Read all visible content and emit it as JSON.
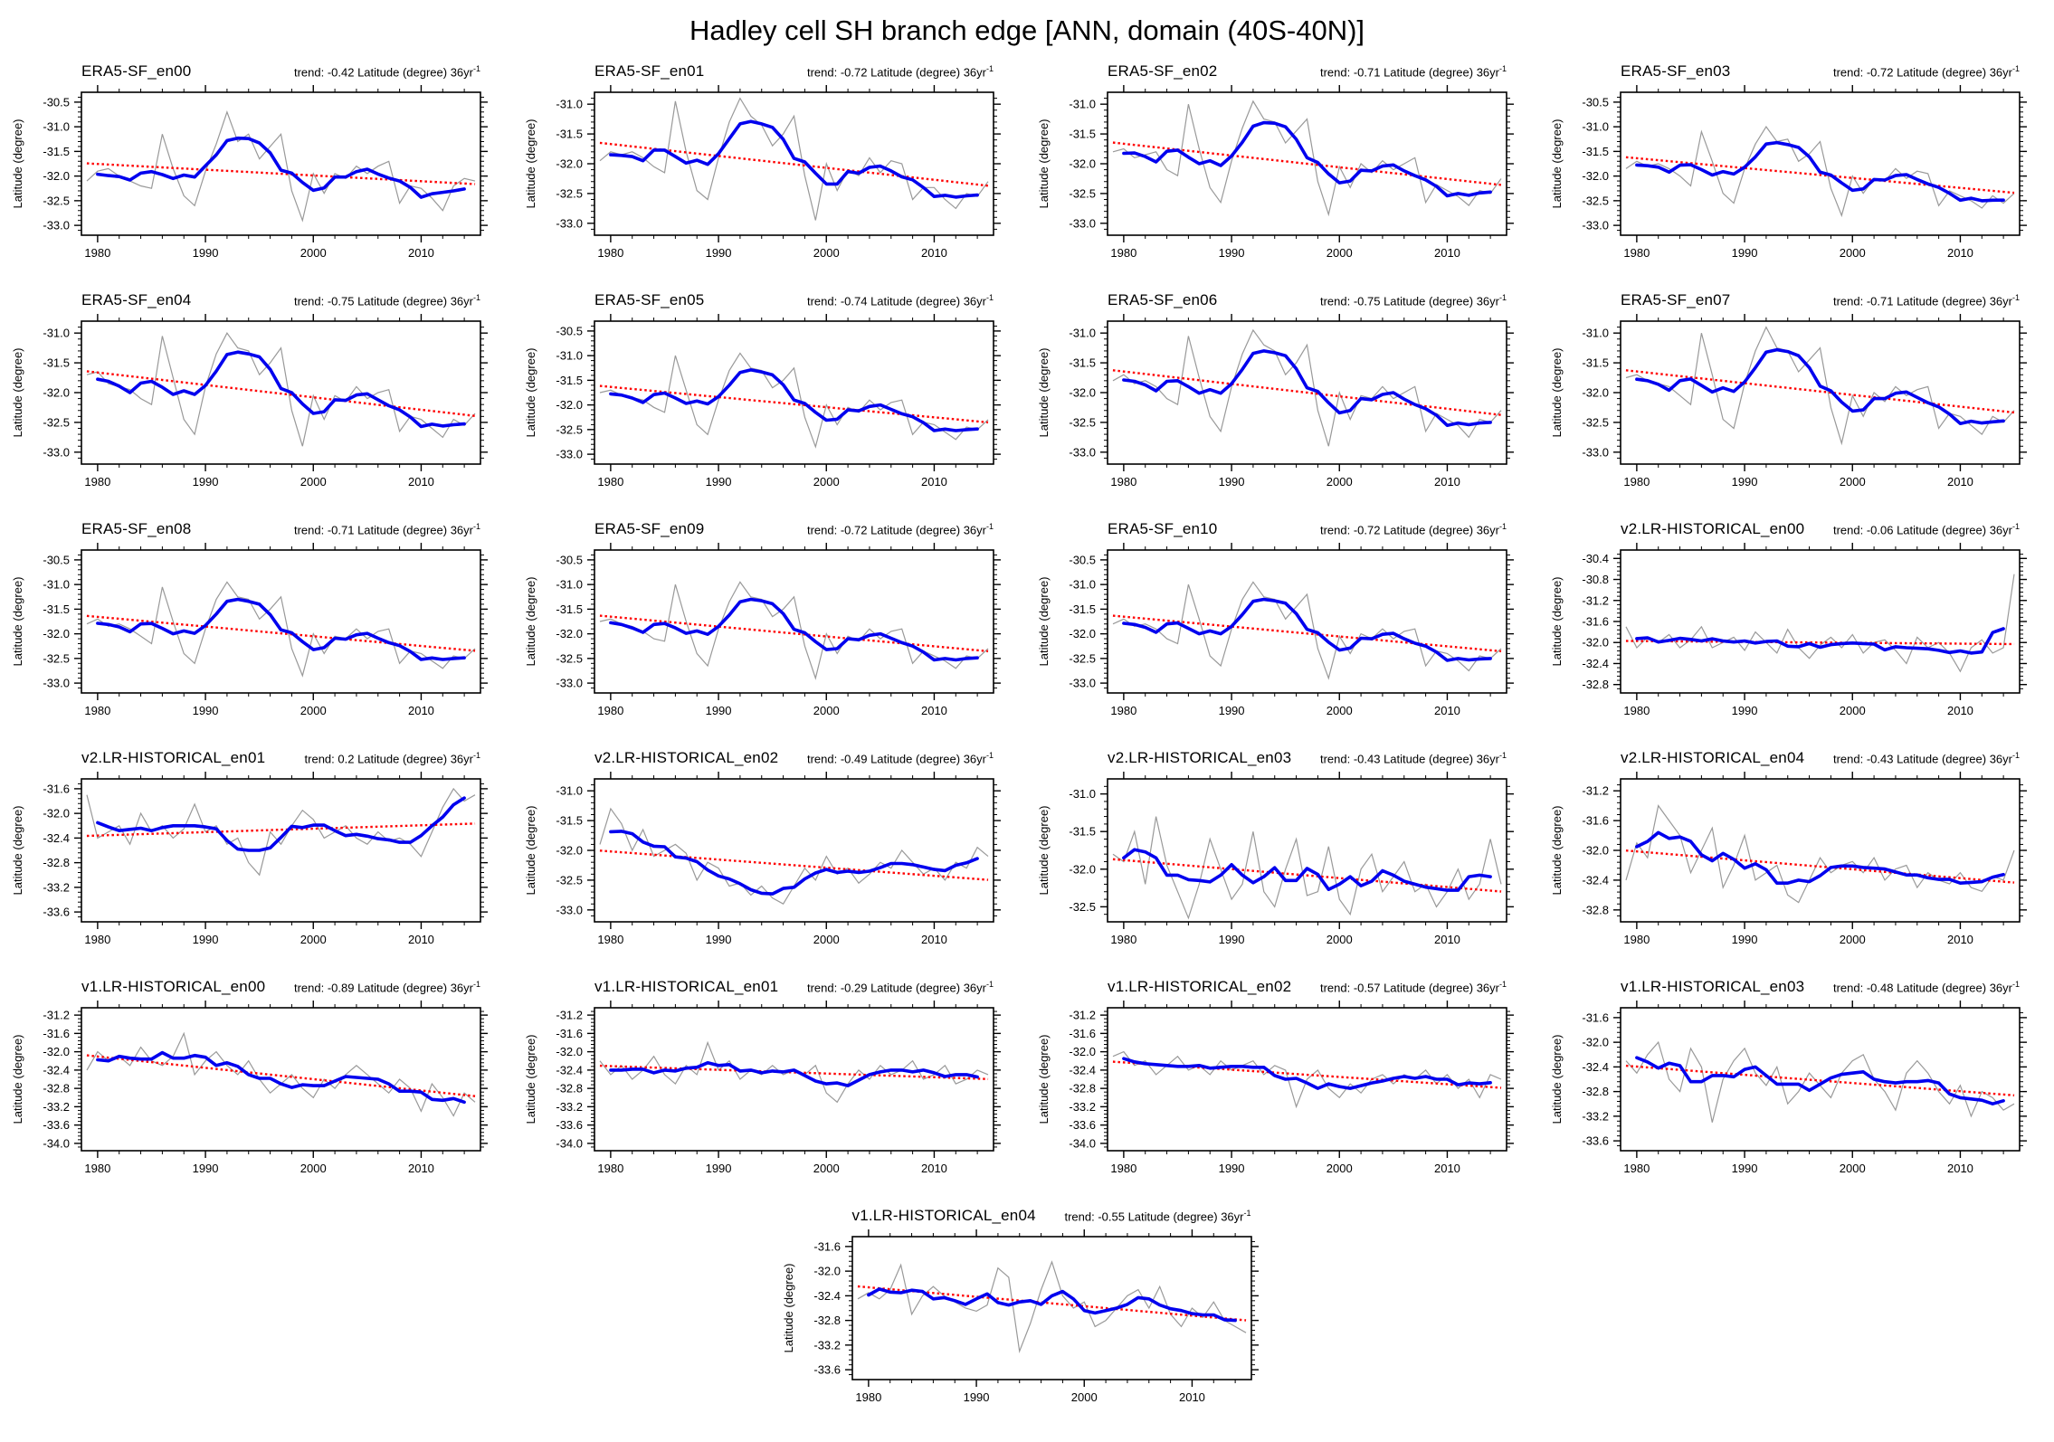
{
  "page_title": "Hadley cell SH branch edge [ANN, domain (40S-40N)]",
  "labels": {
    "ylabel": "Latitude (degree)",
    "trend_prefix": "trend: ",
    "trend_suffix": " Latitude (degree) 36yr",
    "trend_sup": "-1"
  },
  "colors": {
    "annual": "#999999",
    "smoothed": "#0000ee",
    "trend": "#ff0000",
    "frame": "#000000"
  },
  "axes": {
    "x_start": 1979,
    "x_end": 2015,
    "xlim": [
      1978.5,
      2015.5
    ],
    "xticks": [
      1980,
      1990,
      2000,
      2010
    ],
    "x_minor_step": 2
  },
  "chart_data": [
    {
      "type": "line",
      "title": "ERA5-SF_en00",
      "trend": "-0.42",
      "ystep": 0.5,
      "ylim": [
        -30.3,
        -33.2
      ],
      "yticks": [
        -30.5,
        -31.0,
        -31.5,
        -32.0,
        -32.5,
        -33.0
      ],
      "values": [
        -32.1,
        -31.9,
        -31.85,
        -32.0,
        -32.1,
        -32.2,
        -32.25,
        -31.15,
        -31.85,
        -32.4,
        -32.6,
        -31.9,
        -31.35,
        -30.7,
        -31.3,
        -31.15,
        -31.65,
        -31.4,
        -31.15,
        -32.3,
        -32.9,
        -31.95,
        -32.35,
        -31.95,
        -32.05,
        -31.8,
        -31.95,
        -31.8,
        -31.7,
        -32.55,
        -32.2,
        -32.25,
        -32.45,
        -32.7,
        -32.2,
        -32.05,
        -32.1
      ]
    },
    {
      "type": "line",
      "title": "ERA5-SF_en01",
      "trend": "-0.72",
      "ystep": 0.5,
      "ylim": [
        -30.8,
        -33.2
      ],
      "yticks": [
        -31.0,
        -31.5,
        -32.0,
        -32.5,
        -33.0
      ],
      "values": [
        -31.95,
        -31.8,
        -31.85,
        -31.8,
        -31.9,
        -32.05,
        -32.15,
        -30.95,
        -31.8,
        -32.45,
        -32.6,
        -31.9,
        -31.3,
        -30.9,
        -31.2,
        -31.35,
        -31.7,
        -31.5,
        -31.2,
        -32.2,
        -32.95,
        -32.0,
        -32.45,
        -32.1,
        -32.2,
        -31.9,
        -32.15,
        -31.95,
        -32.0,
        -32.6,
        -32.4,
        -32.4,
        -32.6,
        -32.75,
        -32.5,
        -32.55,
        -32.3
      ]
    },
    {
      "type": "line",
      "title": "ERA5-SF_en02",
      "trend": "-0.71",
      "ystep": 0.5,
      "ylim": [
        -30.8,
        -33.2
      ],
      "yticks": [
        -31.0,
        -31.5,
        -32.0,
        -32.5,
        -33.0
      ],
      "values": [
        -31.8,
        -31.75,
        -31.9,
        -31.85,
        -31.8,
        -32.1,
        -32.2,
        -31.0,
        -31.75,
        -32.4,
        -32.65,
        -31.95,
        -31.4,
        -30.95,
        -31.25,
        -31.3,
        -31.65,
        -31.45,
        -31.25,
        -32.3,
        -32.85,
        -32.05,
        -32.4,
        -32.0,
        -32.15,
        -31.95,
        -32.1,
        -32.0,
        -31.9,
        -32.65,
        -32.35,
        -32.45,
        -32.55,
        -32.7,
        -32.45,
        -32.5,
        -32.25
      ]
    },
    {
      "type": "line",
      "title": "ERA5-SF_en03",
      "trend": "-0.72",
      "ystep": 0.5,
      "ylim": [
        -30.3,
        -33.2
      ],
      "yticks": [
        -30.5,
        -31.0,
        -31.5,
        -32.0,
        -32.5,
        -33.0
      ],
      "values": [
        -31.85,
        -31.7,
        -31.8,
        -31.75,
        -31.85,
        -32.0,
        -32.2,
        -31.1,
        -31.7,
        -32.35,
        -32.55,
        -31.85,
        -31.35,
        -31.0,
        -31.3,
        -31.25,
        -31.7,
        -31.55,
        -31.3,
        -32.25,
        -32.8,
        -32.0,
        -32.35,
        -32.05,
        -32.1,
        -31.85,
        -32.05,
        -31.9,
        -31.95,
        -32.6,
        -32.3,
        -32.4,
        -32.5,
        -32.65,
        -32.4,
        -32.55,
        -32.35
      ]
    },
    {
      "type": "line",
      "title": "ERA5-SF_en04",
      "trend": "-0.75",
      "ystep": 0.5,
      "ylim": [
        -30.8,
        -33.2
      ],
      "yticks": [
        -31.0,
        -31.5,
        -32.0,
        -32.5,
        -33.0
      ],
      "values": [
        -31.7,
        -31.65,
        -31.85,
        -31.9,
        -31.95,
        -32.1,
        -32.2,
        -31.05,
        -31.75,
        -32.45,
        -32.7,
        -31.9,
        -31.35,
        -31.0,
        -31.25,
        -31.3,
        -31.7,
        -31.5,
        -31.25,
        -32.3,
        -32.9,
        -32.05,
        -32.45,
        -32.05,
        -32.15,
        -31.9,
        -32.1,
        -32.0,
        -31.95,
        -32.65,
        -32.4,
        -32.45,
        -32.6,
        -32.75,
        -32.45,
        -32.55,
        -32.35
      ]
    },
    {
      "type": "line",
      "title": "ERA5-SF_en05",
      "trend": "-0.74",
      "ystep": 0.5,
      "ylim": [
        -30.3,
        -33.2
      ],
      "yticks": [
        -30.5,
        -31.0,
        -31.5,
        -32.0,
        -32.5,
        -33.0
      ],
      "values": [
        -31.75,
        -31.7,
        -31.8,
        -31.85,
        -31.9,
        -32.05,
        -32.15,
        -31.0,
        -31.7,
        -32.4,
        -32.6,
        -31.9,
        -31.3,
        -30.95,
        -31.25,
        -31.3,
        -31.65,
        -31.5,
        -31.25,
        -32.25,
        -32.85,
        -32.0,
        -32.4,
        -32.05,
        -32.15,
        -31.9,
        -32.1,
        -31.95,
        -31.9,
        -32.6,
        -32.35,
        -32.4,
        -32.55,
        -32.7,
        -32.45,
        -32.5,
        -32.3
      ]
    },
    {
      "type": "line",
      "title": "ERA5-SF_en06",
      "trend": "-0.75",
      "ystep": 0.5,
      "ylim": [
        -30.8,
        -33.2
      ],
      "yticks": [
        -31.0,
        -31.5,
        -32.0,
        -32.5,
        -33.0
      ],
      "values": [
        -31.8,
        -31.7,
        -31.85,
        -31.8,
        -31.9,
        -32.1,
        -32.2,
        -31.05,
        -31.75,
        -32.4,
        -32.65,
        -31.9,
        -31.35,
        -30.95,
        -31.2,
        -31.3,
        -31.7,
        -31.5,
        -31.2,
        -32.3,
        -32.9,
        -32.0,
        -32.45,
        -32.05,
        -32.1,
        -31.9,
        -32.1,
        -32.0,
        -31.9,
        -32.65,
        -32.35,
        -32.45,
        -32.55,
        -32.75,
        -32.45,
        -32.5,
        -32.3
      ]
    },
    {
      "type": "line",
      "title": "ERA5-SF_en07",
      "trend": "-0.71",
      "ystep": 0.5,
      "ylim": [
        -30.8,
        -33.2
      ],
      "yticks": [
        -31.0,
        -31.5,
        -32.0,
        -32.5,
        -33.0
      ],
      "values": [
        -31.75,
        -31.7,
        -31.8,
        -31.85,
        -31.9,
        -32.05,
        -32.2,
        -31.0,
        -31.7,
        -32.45,
        -32.6,
        -31.85,
        -31.3,
        -30.9,
        -31.25,
        -31.3,
        -31.65,
        -31.45,
        -31.25,
        -32.25,
        -32.85,
        -32.05,
        -32.4,
        -32.0,
        -32.15,
        -31.9,
        -32.05,
        -31.95,
        -31.9,
        -32.6,
        -32.35,
        -32.4,
        -32.55,
        -32.7,
        -32.4,
        -32.5,
        -32.3
      ]
    },
    {
      "type": "line",
      "title": "ERA5-SF_en08",
      "trend": "-0.71",
      "ystep": 0.5,
      "ylim": [
        -30.3,
        -33.2
      ],
      "yticks": [
        -30.5,
        -31.0,
        -31.5,
        -32.0,
        -32.5,
        -33.0
      ],
      "values": [
        -31.8,
        -31.7,
        -31.85,
        -31.8,
        -31.9,
        -32.05,
        -32.2,
        -31.05,
        -31.75,
        -32.4,
        -32.6,
        -31.9,
        -31.3,
        -30.95,
        -31.25,
        -31.3,
        -31.7,
        -31.5,
        -31.25,
        -32.3,
        -32.85,
        -32.0,
        -32.4,
        -32.05,
        -32.1,
        -31.9,
        -32.1,
        -31.95,
        -31.9,
        -32.6,
        -32.35,
        -32.4,
        -32.55,
        -32.7,
        -32.45,
        -32.5,
        -32.3
      ]
    },
    {
      "type": "line",
      "title": "ERA5-SF_en09",
      "trend": "-0.72",
      "ystep": 0.5,
      "ylim": [
        -30.3,
        -33.2
      ],
      "yticks": [
        -30.5,
        -31.0,
        -31.5,
        -32.0,
        -32.5,
        -33.0
      ],
      "values": [
        -31.75,
        -31.7,
        -31.8,
        -31.85,
        -31.95,
        -32.1,
        -32.15,
        -31.0,
        -31.75,
        -32.4,
        -32.65,
        -31.9,
        -31.35,
        -30.95,
        -31.25,
        -31.3,
        -31.65,
        -31.5,
        -31.25,
        -32.25,
        -32.9,
        -32.0,
        -32.4,
        -32.05,
        -32.15,
        -31.9,
        -32.1,
        -31.95,
        -31.9,
        -32.6,
        -32.35,
        -32.45,
        -32.55,
        -32.7,
        -32.45,
        -32.5,
        -32.3
      ]
    },
    {
      "type": "line",
      "title": "ERA5-SF_en10",
      "trend": "-0.72",
      "ystep": 0.5,
      "ylim": [
        -30.3,
        -33.2
      ],
      "yticks": [
        -30.5,
        -31.0,
        -31.5,
        -32.0,
        -32.5,
        -33.0
      ],
      "values": [
        -31.8,
        -31.7,
        -31.85,
        -31.8,
        -31.9,
        -32.1,
        -32.2,
        -31.0,
        -31.7,
        -32.45,
        -32.65,
        -31.9,
        -31.3,
        -30.95,
        -31.25,
        -31.3,
        -31.7,
        -31.45,
        -31.2,
        -32.3,
        -32.9,
        -32.05,
        -32.4,
        -32.0,
        -32.1,
        -31.9,
        -32.1,
        -31.95,
        -31.9,
        -32.65,
        -32.35,
        -32.4,
        -32.55,
        -32.75,
        -32.45,
        -32.5,
        -32.3
      ]
    },
    {
      "type": "line",
      "title": "v2.LR-HISTORICAL_en00",
      "trend": "-0.06",
      "ystep": 0.4,
      "ylim": [
        -30.24,
        -32.96
      ],
      "yticks": [
        -30.4,
        -30.8,
        -31.2,
        -31.6,
        -32.0,
        -32.4,
        -32.8
      ],
      "values": [
        -31.7,
        -32.1,
        -31.9,
        -32.0,
        -31.85,
        -32.1,
        -31.95,
        -31.7,
        -32.1,
        -32.0,
        -31.9,
        -32.15,
        -31.8,
        -32.0,
        -32.2,
        -31.75,
        -32.1,
        -32.3,
        -32.05,
        -31.9,
        -32.1,
        -31.85,
        -32.2,
        -32.0,
        -31.95,
        -32.15,
        -32.4,
        -31.9,
        -32.1,
        -32.0,
        -32.2,
        -32.55,
        -32.1,
        -31.95,
        -32.2,
        -32.1,
        -30.7
      ]
    },
    {
      "type": "line",
      "title": "v2.LR-HISTORICAL_en01",
      "trend": "0.2",
      "ystep": 0.4,
      "ylim": [
        -31.44,
        -33.76
      ],
      "yticks": [
        -31.6,
        -32.0,
        -32.4,
        -32.8,
        -33.2,
        -33.6
      ],
      "values": [
        -31.7,
        -32.4,
        -32.3,
        -32.2,
        -32.5,
        -32.0,
        -32.3,
        -32.2,
        -32.4,
        -32.25,
        -31.85,
        -32.3,
        -32.2,
        -32.5,
        -32.4,
        -32.8,
        -33.0,
        -32.3,
        -32.5,
        -32.2,
        -31.95,
        -32.1,
        -32.4,
        -32.3,
        -32.2,
        -32.4,
        -32.5,
        -32.3,
        -32.45,
        -32.4,
        -32.5,
        -32.7,
        -32.3,
        -31.9,
        -31.6,
        -31.8,
        -31.7
      ]
    },
    {
      "type": "line",
      "title": "v2.LR-HISTORICAL_en02",
      "trend": "-0.49",
      "ystep": 0.5,
      "ylim": [
        -30.8,
        -33.2
      ],
      "yticks": [
        -31.0,
        -31.5,
        -32.0,
        -32.5,
        -33.0
      ],
      "values": [
        -31.9,
        -31.3,
        -31.55,
        -32.0,
        -31.65,
        -32.1,
        -32.0,
        -31.9,
        -32.05,
        -32.5,
        -32.2,
        -32.3,
        -32.6,
        -32.55,
        -32.75,
        -32.6,
        -32.8,
        -32.9,
        -32.6,
        -32.3,
        -32.5,
        -32.1,
        -32.4,
        -32.3,
        -32.55,
        -32.4,
        -32.2,
        -32.3,
        -32.0,
        -32.2,
        -32.4,
        -32.3,
        -32.5,
        -32.2,
        -32.3,
        -31.95,
        -32.1
      ]
    },
    {
      "type": "line",
      "title": "v2.LR-HISTORICAL_en03",
      "trend": "-0.43",
      "ystep": 0.5,
      "ylim": [
        -30.8,
        -32.7
      ],
      "yticks": [
        -31.0,
        -31.5,
        -32.0,
        -32.5
      ],
      "values": [
        -31.8,
        -31.9,
        -31.5,
        -32.2,
        -31.3,
        -31.95,
        -32.3,
        -32.65,
        -32.2,
        -31.6,
        -32.0,
        -32.4,
        -32.2,
        -31.5,
        -32.3,
        -32.5,
        -32.0,
        -31.6,
        -32.35,
        -32.3,
        -31.7,
        -32.4,
        -32.6,
        -32.0,
        -31.8,
        -32.3,
        -32.1,
        -31.9,
        -32.3,
        -32.2,
        -32.5,
        -32.3,
        -32.0,
        -32.4,
        -32.2,
        -31.6,
        -32.2
      ]
    },
    {
      "type": "line",
      "title": "v2.LR-HISTORICAL_en04",
      "trend": "-0.43",
      "ystep": 0.4,
      "ylim": [
        -31.04,
        -32.96
      ],
      "yticks": [
        -31.2,
        -31.6,
        -32.0,
        -32.4,
        -32.8
      ],
      "values": [
        -32.4,
        -31.9,
        -32.1,
        -31.4,
        -31.6,
        -31.8,
        -32.3,
        -32.0,
        -31.7,
        -32.5,
        -32.2,
        -31.8,
        -32.4,
        -32.3,
        -32.2,
        -32.6,
        -32.7,
        -32.4,
        -32.1,
        -32.3,
        -32.2,
        -32.15,
        -32.3,
        -32.1,
        -32.4,
        -32.25,
        -32.2,
        -32.5,
        -32.3,
        -32.4,
        -32.45,
        -32.3,
        -32.5,
        -32.55,
        -32.35,
        -32.4,
        -32.0
      ]
    },
    {
      "type": "line",
      "title": "v1.LR-HISTORICAL_en00",
      "trend": "-0.89",
      "ystep": 0.4,
      "ylim": [
        -31.04,
        -34.16
      ],
      "yticks": [
        -31.2,
        -31.6,
        -32.0,
        -32.4,
        -32.8,
        -33.2,
        -33.6,
        -34.0
      ],
      "values": [
        -32.4,
        -32.0,
        -32.2,
        -32.1,
        -32.3,
        -31.9,
        -32.2,
        -32.3,
        -32.1,
        -31.6,
        -32.5,
        -32.2,
        -32.0,
        -32.3,
        -32.5,
        -32.2,
        -32.6,
        -32.9,
        -32.7,
        -32.5,
        -32.8,
        -33.0,
        -32.6,
        -32.8,
        -32.5,
        -32.3,
        -32.5,
        -32.7,
        -32.9,
        -32.6,
        -32.8,
        -33.3,
        -32.7,
        -33.0,
        -33.4,
        -32.9,
        -33.1
      ]
    },
    {
      "type": "line",
      "title": "v1.LR-HISTORICAL_en01",
      "trend": "-0.29",
      "ystep": 0.4,
      "ylim": [
        -31.04,
        -34.16
      ],
      "yticks": [
        -31.2,
        -31.6,
        -32.0,
        -32.4,
        -32.8,
        -33.2,
        -33.6,
        -34.0
      ],
      "values": [
        -32.2,
        -32.5,
        -32.3,
        -32.6,
        -32.4,
        -32.1,
        -32.5,
        -32.7,
        -32.3,
        -32.5,
        -31.8,
        -32.4,
        -32.2,
        -32.6,
        -32.4,
        -32.5,
        -32.3,
        -32.5,
        -32.4,
        -32.5,
        -32.3,
        -32.9,
        -33.1,
        -32.7,
        -32.4,
        -32.6,
        -32.3,
        -32.5,
        -32.4,
        -32.2,
        -32.6,
        -32.5,
        -32.3,
        -32.7,
        -32.6,
        -32.4,
        -32.5
      ]
    },
    {
      "type": "line",
      "title": "v1.LR-HISTORICAL_en02",
      "trend": "-0.57",
      "ystep": 0.4,
      "ylim": [
        -31.04,
        -34.16
      ],
      "yticks": [
        -31.2,
        -31.6,
        -32.0,
        -32.4,
        -32.8,
        -33.2,
        -33.6,
        -34.0
      ],
      "values": [
        -32.1,
        -32.0,
        -32.3,
        -32.2,
        -32.5,
        -32.3,
        -32.1,
        -32.4,
        -32.3,
        -32.5,
        -32.2,
        -32.4,
        -32.3,
        -32.2,
        -32.5,
        -32.3,
        -32.4,
        -33.2,
        -32.6,
        -32.4,
        -32.8,
        -33.0,
        -32.7,
        -32.9,
        -32.6,
        -32.5,
        -32.7,
        -32.5,
        -32.6,
        -32.4,
        -32.7,
        -32.5,
        -32.8,
        -32.6,
        -33.0,
        -32.5,
        -32.6
      ]
    },
    {
      "type": "line",
      "title": "v1.LR-HISTORICAL_en03",
      "trend": "-0.48",
      "ystep": 0.4,
      "ylim": [
        -31.44,
        -33.76
      ],
      "yticks": [
        -31.6,
        -32.0,
        -32.4,
        -32.8,
        -33.2,
        -33.6
      ],
      "values": [
        -32.3,
        -32.5,
        -32.2,
        -32.0,
        -32.6,
        -32.8,
        -32.1,
        -32.4,
        -33.3,
        -32.6,
        -32.3,
        -32.1,
        -32.5,
        -32.7,
        -32.4,
        -33.0,
        -32.8,
        -32.5,
        -32.7,
        -32.9,
        -32.5,
        -32.3,
        -32.2,
        -32.6,
        -32.8,
        -33.1,
        -32.5,
        -32.3,
        -32.5,
        -32.8,
        -33.0,
        -32.7,
        -33.2,
        -32.8,
        -32.9,
        -33.1,
        -33.0
      ]
    },
    {
      "type": "line",
      "title": "v1.LR-HISTORICAL_en04",
      "trend": "-0.55",
      "ystep": 0.4,
      "ylim": [
        -31.44,
        -33.76
      ],
      "yticks": [
        -31.6,
        -32.0,
        -32.4,
        -32.8,
        -33.2,
        -33.6
      ],
      "values": [
        -32.45,
        -32.35,
        -32.45,
        -32.3,
        -31.9,
        -32.7,
        -32.4,
        -32.25,
        -32.4,
        -32.5,
        -32.6,
        -32.65,
        -32.55,
        -31.95,
        -32.1,
        -33.3,
        -32.85,
        -32.3,
        -31.85,
        -32.4,
        -32.6,
        -32.5,
        -32.9,
        -32.8,
        -32.6,
        -32.4,
        -32.3,
        -32.6,
        -32.25,
        -32.7,
        -32.9,
        -32.6,
        -32.75,
        -32.5,
        -32.8,
        -32.9,
        -33.0
      ]
    }
  ]
}
